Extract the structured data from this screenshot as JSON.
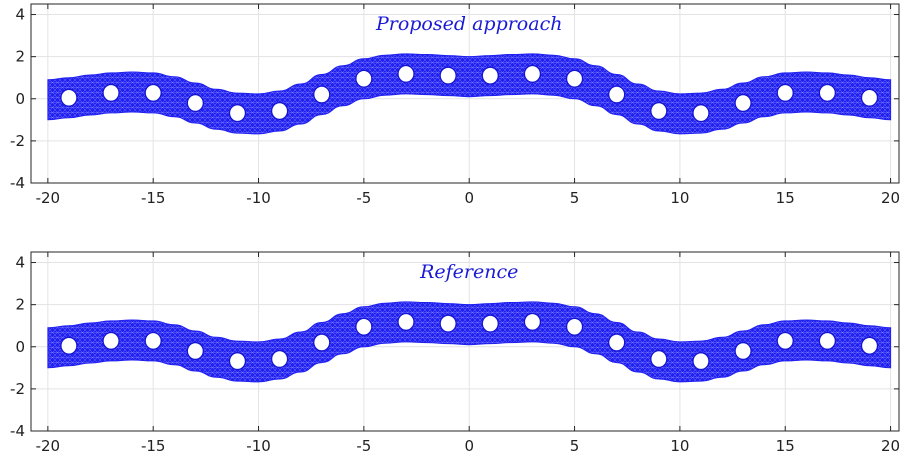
{
  "chart_data": [
    {
      "type": "area",
      "title": "Proposed approach",
      "xlabel": "",
      "ylabel": "",
      "xlim": [
        -20.8,
        20.4
      ],
      "ylim": [
        -4,
        4.5
      ],
      "xticks": [
        -20,
        -15,
        -10,
        -5,
        0,
        5,
        10,
        15,
        20
      ],
      "yticks": [
        -4,
        -2,
        0,
        2,
        4
      ],
      "grid": true,
      "band": {
        "x": [
          -20,
          -19,
          -18,
          -17,
          -16,
          -15,
          -14,
          -13,
          -12,
          -11,
          -10,
          -9,
          -8,
          -7,
          -6,
          -5,
          -4,
          -3,
          -2,
          -1,
          0,
          1,
          2,
          3,
          4,
          5,
          6,
          7,
          8,
          9,
          10,
          11,
          12,
          13,
          14,
          15,
          16,
          17,
          18,
          19,
          20
        ],
        "center": [
          -0.05,
          0.05,
          0.18,
          0.28,
          0.32,
          0.28,
          0.1,
          -0.2,
          -0.5,
          -0.68,
          -0.72,
          -0.58,
          -0.25,
          0.2,
          0.62,
          0.95,
          1.12,
          1.18,
          1.15,
          1.1,
          1.05,
          1.1,
          1.15,
          1.18,
          1.12,
          0.95,
          0.62,
          0.2,
          -0.25,
          -0.58,
          -0.72,
          -0.68,
          -0.5,
          -0.2,
          0.1,
          0.28,
          0.32,
          0.28,
          0.18,
          0.05,
          -0.05
        ],
        "half_width": 0.95
      },
      "holes": {
        "x": [
          -19,
          -17,
          -15,
          -13,
          -11,
          -9,
          -7,
          -5,
          -3,
          -1,
          1,
          3,
          5,
          7,
          9,
          11,
          13,
          15,
          17,
          19
        ],
        "y": [
          0.05,
          0.28,
          0.28,
          -0.2,
          -0.68,
          -0.58,
          0.2,
          0.95,
          1.18,
          1.1,
          1.1,
          1.18,
          0.95,
          0.2,
          -0.58,
          -0.68,
          -0.2,
          0.28,
          0.28,
          0.05
        ],
        "radius": 0.38
      },
      "colors": {
        "fill": "#2020f0",
        "mesh": "#6a6aff",
        "hole": "#ffffff",
        "title": "#1a1ad6"
      }
    },
    {
      "type": "area",
      "title": "Reference",
      "xlabel": "",
      "ylabel": "",
      "xlim": [
        -20.8,
        20.4
      ],
      "ylim": [
        -4,
        4.5
      ],
      "xticks": [
        -20,
        -15,
        -10,
        -5,
        0,
        5,
        10,
        15,
        20
      ],
      "yticks": [
        -4,
        -2,
        0,
        2,
        4
      ],
      "grid": true,
      "band": {
        "x": [
          -20,
          -19,
          -18,
          -17,
          -16,
          -15,
          -14,
          -13,
          -12,
          -11,
          -10,
          -9,
          -8,
          -7,
          -6,
          -5,
          -4,
          -3,
          -2,
          -1,
          0,
          1,
          2,
          3,
          4,
          5,
          6,
          7,
          8,
          9,
          10,
          11,
          12,
          13,
          14,
          15,
          16,
          17,
          18,
          19,
          20
        ],
        "center": [
          -0.05,
          0.05,
          0.18,
          0.28,
          0.32,
          0.28,
          0.1,
          -0.2,
          -0.5,
          -0.68,
          -0.72,
          -0.58,
          -0.25,
          0.2,
          0.62,
          0.95,
          1.12,
          1.18,
          1.15,
          1.1,
          1.05,
          1.1,
          1.15,
          1.18,
          1.12,
          0.95,
          0.62,
          0.2,
          -0.25,
          -0.58,
          -0.72,
          -0.68,
          -0.5,
          -0.2,
          0.1,
          0.28,
          0.32,
          0.28,
          0.18,
          0.05,
          -0.05
        ],
        "half_width": 0.95
      },
      "holes": {
        "x": [
          -19,
          -17,
          -15,
          -13,
          -11,
          -9,
          -7,
          -5,
          -3,
          -1,
          1,
          3,
          5,
          7,
          9,
          11,
          13,
          15,
          17,
          19
        ],
        "y": [
          0.05,
          0.28,
          0.28,
          -0.2,
          -0.68,
          -0.58,
          0.2,
          0.95,
          1.18,
          1.1,
          1.1,
          1.18,
          0.95,
          0.2,
          -0.58,
          -0.68,
          -0.2,
          0.28,
          0.28,
          0.05
        ],
        "radius": 0.38
      },
      "colors": {
        "fill": "#2020f0",
        "mesh": "#6a6aff",
        "hole": "#ffffff",
        "title": "#1a1ad6"
      }
    }
  ]
}
